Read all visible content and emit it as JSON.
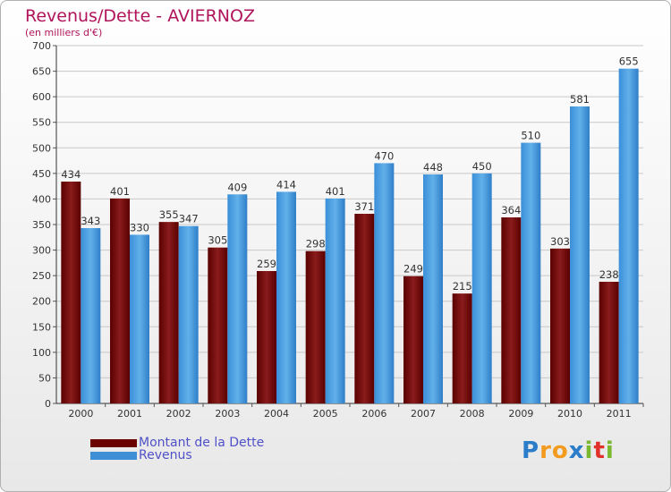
{
  "header": {
    "title": "Revenus/Dette - AVIERNOZ",
    "subtitle": "(en milliers d'€)"
  },
  "colors": {
    "dette": "#7a0a0a",
    "revenus": "#4a9fdf",
    "title": "#b0145a",
    "legend_text": "#5050c8"
  },
  "legend": {
    "items": [
      {
        "label": "Montant de la Dette",
        "color": "#6b0000"
      },
      {
        "label": "Revenus",
        "color": "#3d8fd6"
      }
    ]
  },
  "logo": {
    "letters": [
      "P",
      "r",
      "o",
      "x",
      "i",
      "t",
      "i"
    ],
    "colors": [
      "#2b7cc9",
      "#f29b1f",
      "#f29b1f",
      "#2b7cc9",
      "#7ab830",
      "#e0322a",
      "#7ab830"
    ]
  },
  "chart_data": {
    "type": "bar",
    "title": "Revenus/Dette - AVIERNOZ",
    "ylabel": "(en milliers d'€)",
    "xlabel": "",
    "categories": [
      "2000",
      "2001",
      "2002",
      "2003",
      "2004",
      "2005",
      "2006",
      "2007",
      "2008",
      "2009",
      "2010",
      "2011"
    ],
    "series": [
      {
        "name": "Montant de la Dette",
        "values": [
          434,
          401,
          355,
          305,
          259,
          298,
          371,
          249,
          215,
          364,
          303,
          238
        ]
      },
      {
        "name": "Revenus",
        "values": [
          343,
          330,
          347,
          409,
          414,
          401,
          470,
          448,
          450,
          510,
          581,
          655
        ]
      }
    ],
    "ylim": [
      0,
      700
    ],
    "yticks": [
      0,
      50,
      100,
      150,
      200,
      250,
      300,
      350,
      400,
      450,
      500,
      550,
      600,
      650,
      700
    ],
    "grid": true,
    "legend_position": "bottom-left"
  }
}
